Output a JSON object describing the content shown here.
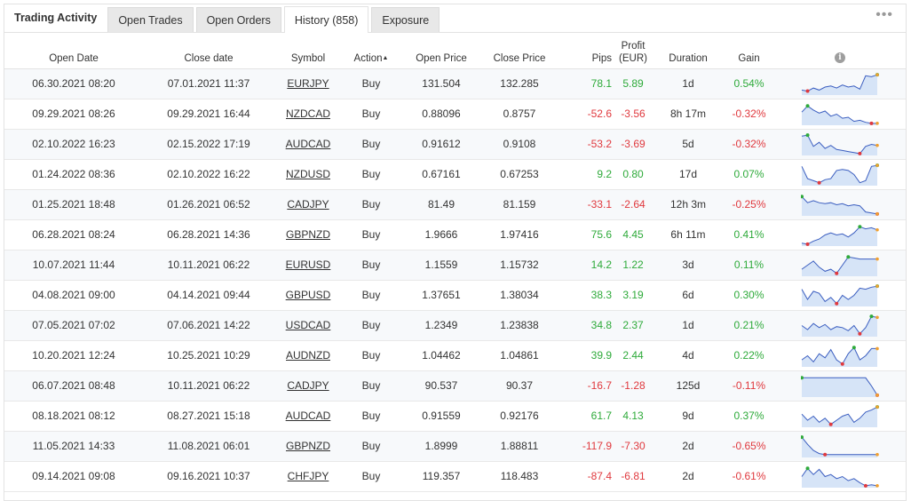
{
  "tabs": {
    "title": "Trading Activity",
    "items": [
      "Open Trades",
      "Open Orders",
      "History (858)",
      "Exposure"
    ]
  },
  "columns": {
    "open_date": "Open Date",
    "close_date": "Close date",
    "symbol": "Symbol",
    "action": "Action",
    "open_price": "Open Price",
    "close_price": "Close Price",
    "pips": "Pips",
    "profit": "Profit",
    "profit_unit": "(EUR)",
    "duration": "Duration",
    "gain": "Gain"
  },
  "icons": {
    "menu": "ellipsis-icon",
    "info": "info-icon",
    "sort": "sort-up-arrow-icon"
  },
  "colors": {
    "positive": "#2eaa3a",
    "negative": "#e0393e",
    "spark_line": "#3b5ec0",
    "spark_fill": "#d6e4f7",
    "spark_start": "#2eaa3a",
    "spark_end": "#e0393e"
  },
  "rows": [
    {
      "open_date": "06.30.2021 08:20",
      "close_date": "07.01.2021 11:37",
      "symbol": "EURJPY",
      "action": "Buy",
      "open_price": "131.504",
      "close_price": "132.285",
      "pips": "78.1",
      "profit": "5.89",
      "duration": "1d",
      "gain": "0.54%",
      "sign": "pos",
      "spark": [
        0.2,
        0.15,
        0.3,
        0.2,
        0.35,
        0.4,
        0.3,
        0.45,
        0.35,
        0.4,
        0.25,
        0.9,
        0.85,
        0.95
      ]
    },
    {
      "open_date": "09.29.2021 08:26",
      "close_date": "09.29.2021 16:44",
      "symbol": "NZDCAD",
      "action": "Buy",
      "open_price": "0.88096",
      "close_price": "0.8757",
      "pips": "-52.6",
      "profit": "-3.56",
      "duration": "8h 17m",
      "gain": "-0.32%",
      "sign": "neg",
      "spark": [
        0.6,
        0.9,
        0.7,
        0.55,
        0.65,
        0.4,
        0.5,
        0.3,
        0.35,
        0.15,
        0.2,
        0.1,
        0.05,
        0.05
      ]
    },
    {
      "open_date": "02.10.2022 16:23",
      "close_date": "02.15.2022 17:19",
      "symbol": "AUDCAD",
      "action": "Buy",
      "open_price": "0.91612",
      "close_price": "0.9108",
      "pips": "-53.2",
      "profit": "-3.69",
      "duration": "5d",
      "gain": "-0.32%",
      "sign": "neg",
      "spark": [
        0.9,
        0.95,
        0.4,
        0.6,
        0.3,
        0.45,
        0.25,
        0.2,
        0.15,
        0.1,
        0.05,
        0.4,
        0.5,
        0.45
      ]
    },
    {
      "open_date": "01.24.2022 08:36",
      "close_date": "02.10.2022 16:22",
      "symbol": "NZDUSD",
      "action": "Buy",
      "open_price": "0.67161",
      "close_price": "0.67253",
      "pips": "9.2",
      "profit": "0.80",
      "duration": "17d",
      "gain": "0.07%",
      "sign": "pos",
      "spark": [
        0.9,
        0.3,
        0.2,
        0.1,
        0.25,
        0.3,
        0.7,
        0.75,
        0.7,
        0.5,
        0.1,
        0.2,
        0.9,
        0.95
      ]
    },
    {
      "open_date": "01.25.2021 18:48",
      "close_date": "01.26.2021 06:52",
      "symbol": "CADJPY",
      "action": "Buy",
      "open_price": "81.49",
      "close_price": "81.159",
      "pips": "-33.1",
      "profit": "-2.64",
      "duration": "12h 3m",
      "gain": "-0.25%",
      "sign": "neg",
      "spark": [
        0.9,
        0.6,
        0.7,
        0.6,
        0.55,
        0.6,
        0.5,
        0.55,
        0.45,
        0.5,
        0.45,
        0.15,
        0.1,
        0.05
      ]
    },
    {
      "open_date": "06.28.2021 08:24",
      "close_date": "06.28.2021 14:36",
      "symbol": "GBPNZD",
      "action": "Buy",
      "open_price": "1.9666",
      "close_price": "1.97416",
      "pips": "75.6",
      "profit": "4.45",
      "duration": "6h 11m",
      "gain": "0.41%",
      "sign": "pos",
      "spark": [
        0.1,
        0.05,
        0.2,
        0.3,
        0.5,
        0.6,
        0.5,
        0.55,
        0.4,
        0.6,
        0.9,
        0.8,
        0.85,
        0.75
      ]
    },
    {
      "open_date": "10.07.2021 11:44",
      "close_date": "10.11.2021 06:22",
      "symbol": "EURUSD",
      "action": "Buy",
      "open_price": "1.1559",
      "close_price": "1.15732",
      "pips": "14.2",
      "profit": "1.22",
      "duration": "3d",
      "gain": "0.11%",
      "sign": "pos",
      "spark": [
        0.3,
        0.5,
        0.7,
        0.4,
        0.2,
        0.3,
        0.1,
        0.5,
        0.9,
        0.85,
        0.8,
        0.8,
        0.8,
        0.8
      ]
    },
    {
      "open_date": "04.08.2021 09:00",
      "close_date": "04.14.2021 09:44",
      "symbol": "GBPUSD",
      "action": "Buy",
      "open_price": "1.37651",
      "close_price": "1.38034",
      "pips": "38.3",
      "profit": "3.19",
      "duration": "6d",
      "gain": "0.30%",
      "sign": "pos",
      "spark": [
        0.8,
        0.3,
        0.7,
        0.6,
        0.2,
        0.4,
        0.1,
        0.5,
        0.3,
        0.5,
        0.85,
        0.8,
        0.9,
        0.95
      ]
    },
    {
      "open_date": "07.05.2021 07:02",
      "close_date": "07.06.2021 14:22",
      "symbol": "USDCAD",
      "action": "Buy",
      "open_price": "1.2349",
      "close_price": "1.23838",
      "pips": "34.8",
      "profit": "2.37",
      "duration": "1d",
      "gain": "0.21%",
      "sign": "pos",
      "spark": [
        0.5,
        0.3,
        0.6,
        0.4,
        0.55,
        0.3,
        0.45,
        0.4,
        0.25,
        0.5,
        0.1,
        0.4,
        0.95,
        0.9
      ]
    },
    {
      "open_date": "10.20.2021 12:24",
      "close_date": "10.25.2021 10:29",
      "symbol": "AUDNZD",
      "action": "Buy",
      "open_price": "1.04462",
      "close_price": "1.04861",
      "pips": "39.9",
      "profit": "2.44",
      "duration": "4d",
      "gain": "0.22%",
      "sign": "pos",
      "spark": [
        0.3,
        0.5,
        0.2,
        0.6,
        0.4,
        0.8,
        0.3,
        0.1,
        0.6,
        0.9,
        0.3,
        0.5,
        0.85,
        0.85
      ]
    },
    {
      "open_date": "06.07.2021 08:48",
      "close_date": "10.11.2021 06:22",
      "symbol": "CADJPY",
      "action": "Buy",
      "open_price": "90.537",
      "close_price": "90.37",
      "pips": "-16.7",
      "profit": "-1.28",
      "duration": "125d",
      "gain": "-0.11%",
      "sign": "neg",
      "spark": [
        0.9,
        0.9,
        0.9,
        0.9,
        0.9,
        0.9,
        0.9,
        0.9,
        0.9,
        0.9,
        0.9,
        0.9,
        0.5,
        0.05
      ]
    },
    {
      "open_date": "08.18.2021 08:12",
      "close_date": "08.27.2021 15:18",
      "symbol": "AUDCAD",
      "action": "Buy",
      "open_price": "0.91559",
      "close_price": "0.92176",
      "pips": "61.7",
      "profit": "4.13",
      "duration": "9d",
      "gain": "0.37%",
      "sign": "pos",
      "spark": [
        0.6,
        0.3,
        0.5,
        0.2,
        0.4,
        0.1,
        0.3,
        0.5,
        0.6,
        0.2,
        0.4,
        0.7,
        0.8,
        0.95
      ]
    },
    {
      "open_date": "11.05.2021 14:33",
      "close_date": "11.08.2021 06:01",
      "symbol": "GBPNZD",
      "action": "Buy",
      "open_price": "1.8999",
      "close_price": "1.88811",
      "pips": "-117.9",
      "profit": "-7.30",
      "duration": "2d",
      "gain": "-0.65%",
      "sign": "neg",
      "spark": [
        0.95,
        0.6,
        0.3,
        0.15,
        0.1,
        0.1,
        0.1,
        0.1,
        0.1,
        0.1,
        0.1,
        0.1,
        0.1,
        0.1
      ]
    },
    {
      "open_date": "09.14.2021 09:08",
      "close_date": "09.16.2021 10:37",
      "symbol": "CHFJPY",
      "action": "Buy",
      "open_price": "119.357",
      "close_price": "118.483",
      "pips": "-87.4",
      "profit": "-6.81",
      "duration": "2d",
      "gain": "-0.61%",
      "sign": "neg",
      "spark": [
        0.5,
        0.9,
        0.6,
        0.85,
        0.5,
        0.6,
        0.4,
        0.5,
        0.3,
        0.4,
        0.2,
        0.05,
        0.1,
        0.05
      ]
    }
  ]
}
